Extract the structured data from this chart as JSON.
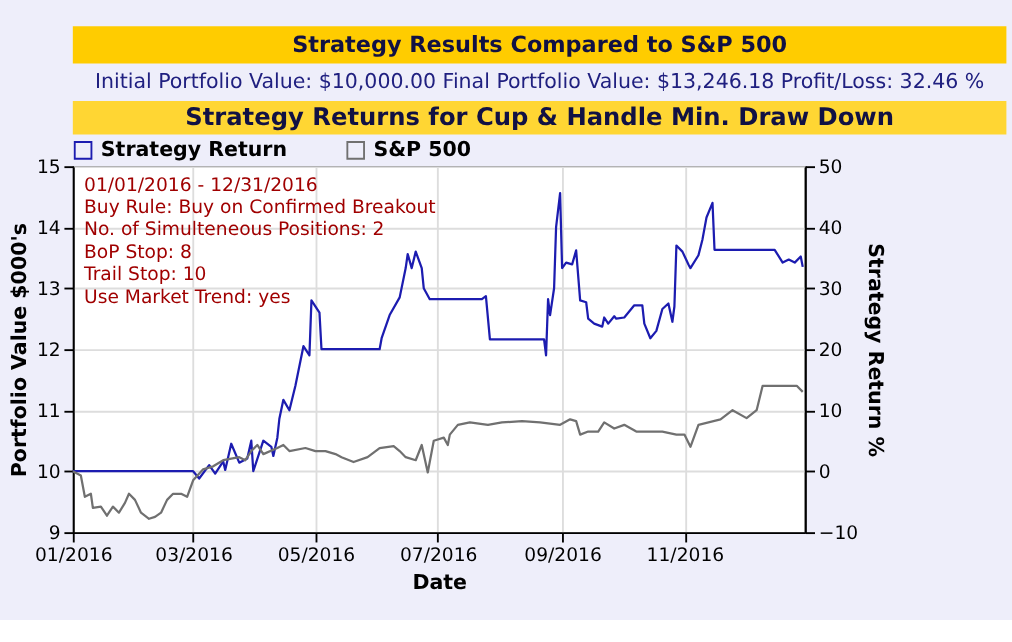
{
  "chart_data": {
    "type": "line",
    "title": "Strategy Results Compared to S&P 500",
    "subtitle": "Initial Portfolio Value: $10,000.00 Final Portfolio Value: $13,246.18 Profit/Loss: 32.46 %",
    "annotations": [
      "Strategy Returns for Cup & Handle Min. Draw Down",
      "01/01/2016 - 12/31/2016",
      "Buy Rule: Buy on Confirmed Breakout",
      "No. of Simulteneous Positions: 2",
      "BoP Stop: 8",
      "Trail Stop: 10",
      "Use Market Trend: yes"
    ],
    "xlabel": "Date",
    "ylabel": "Portfolio Value $000's",
    "y2label": "Strategy Return %",
    "xlim": [
      "2016-01-01",
      "2016-12-31"
    ],
    "xticks": [
      {
        "value": "2016-01-01",
        "label": "01/2016"
      },
      {
        "value": "2016-03-01",
        "label": "03/2016"
      },
      {
        "value": "2016-05-01",
        "label": "05/2016"
      },
      {
        "value": "2016-07-01",
        "label": "07/2016"
      },
      {
        "value": "2016-09-01",
        "label": "09/2016"
      },
      {
        "value": "2016-11-01",
        "label": "11/2016"
      }
    ],
    "ylim": [
      9,
      15
    ],
    "yticks": [
      9,
      10,
      11,
      12,
      13,
      14,
      15
    ],
    "y2lim": [
      -10,
      50
    ],
    "y2ticks": [
      -10,
      0,
      10,
      20,
      30,
      40,
      50
    ],
    "grid": true,
    "legend": "top left",
    "marker": "none",
    "line_style": "solid",
    "series": [
      {
        "name": "Strategy Return",
        "color": "#1c1cb0",
        "x": [
          "2016-01-01",
          "2016-03-01",
          "2016-03-04",
          "2016-03-09",
          "2016-03-12",
          "2016-03-16",
          "2016-03-17",
          "2016-03-20",
          "2016-03-24",
          "2016-03-28",
          "2016-03-30",
          "2016-03-31",
          "2016-04-05",
          "2016-04-09",
          "2016-04-10",
          "2016-04-12",
          "2016-04-13",
          "2016-04-15",
          "2016-04-18",
          "2016-04-21",
          "2016-04-25",
          "2016-04-28",
          "2016-04-29",
          "2016-05-03",
          "2016-05-04",
          "2016-06-02",
          "2016-06-03",
          "2016-06-07",
          "2016-06-12",
          "2016-06-15",
          "2016-06-16",
          "2016-06-18",
          "2016-06-20",
          "2016-06-23",
          "2016-06-24",
          "2016-06-27",
          "2016-07-23",
          "2016-07-25",
          "2016-07-27",
          "2016-08-23",
          "2016-08-24",
          "2016-08-25",
          "2016-08-26",
          "2016-08-28",
          "2016-08-29",
          "2016-08-31",
          "2016-09-01",
          "2016-09-03",
          "2016-09-06",
          "2016-09-08",
          "2016-09-10",
          "2016-09-13",
          "2016-09-14",
          "2016-09-17",
          "2016-09-21",
          "2016-09-22",
          "2016-09-24",
          "2016-09-27",
          "2016-09-28",
          "2016-10-02",
          "2016-10-07",
          "2016-10-11",
          "2016-10-12",
          "2016-10-15",
          "2016-10-18",
          "2016-10-21",
          "2016-10-24",
          "2016-10-26",
          "2016-10-27",
          "2016-10-28",
          "2016-10-31",
          "2016-11-03",
          "2016-11-04",
          "2016-11-08",
          "2016-11-10",
          "2016-11-12",
          "2016-11-15",
          "2016-11-16",
          "2016-12-16",
          "2016-12-20",
          "2016-12-23",
          "2016-12-26",
          "2016-12-29",
          "2016-12-30"
        ],
        "values": [
          10.0,
          10.0,
          9.88,
          10.1,
          9.96,
          10.16,
          10.02,
          10.45,
          10.14,
          10.21,
          10.5,
          10.0,
          10.5,
          10.4,
          10.25,
          10.55,
          10.86,
          11.17,
          11.0,
          11.4,
          12.05,
          11.9,
          12.8,
          12.6,
          12.0,
          12.0,
          12.18,
          12.56,
          12.85,
          13.33,
          13.56,
          13.33,
          13.6,
          13.33,
          13.0,
          12.82,
          12.82,
          12.87,
          12.16,
          12.16,
          11.9,
          12.82,
          12.56,
          13.0,
          14.0,
          14.56,
          13.33,
          13.42,
          13.39,
          13.62,
          12.8,
          12.77,
          12.5,
          12.42,
          12.37,
          12.52,
          12.42,
          12.54,
          12.5,
          12.52,
          12.72,
          12.72,
          12.42,
          12.18,
          12.3,
          12.66,
          12.75,
          12.45,
          12.7,
          13.7,
          13.6,
          13.39,
          13.33,
          13.54,
          13.8,
          14.16,
          14.4,
          13.63,
          13.63,
          13.42,
          13.47,
          13.42,
          13.52,
          13.35
        ]
      },
      {
        "name": "S&P 500",
        "color": "#707070",
        "x": [
          "2016-01-01",
          "2016-01-05",
          "2016-01-07",
          "2016-01-10",
          "2016-01-11",
          "2016-01-15",
          "2016-01-18",
          "2016-01-21",
          "2016-01-24",
          "2016-01-27",
          "2016-01-29",
          "2016-02-01",
          "2016-02-04",
          "2016-02-08",
          "2016-02-11",
          "2016-02-14",
          "2016-02-17",
          "2016-02-20",
          "2016-02-24",
          "2016-02-27",
          "2016-03-01",
          "2016-03-06",
          "2016-03-11",
          "2016-03-16",
          "2016-03-24",
          "2016-03-27",
          "2016-03-30",
          "2016-04-02",
          "2016-04-05",
          "2016-04-12",
          "2016-04-15",
          "2016-04-18",
          "2016-04-26",
          "2016-05-01",
          "2016-05-06",
          "2016-05-11",
          "2016-05-14",
          "2016-05-20",
          "2016-05-27",
          "2016-06-02",
          "2016-06-09",
          "2016-06-12",
          "2016-06-15",
          "2016-06-20",
          "2016-06-23",
          "2016-06-26",
          "2016-06-29",
          "2016-07-04",
          "2016-07-06",
          "2016-07-07",
          "2016-07-11",
          "2016-07-17",
          "2016-07-26",
          "2016-08-02",
          "2016-08-12",
          "2016-08-21",
          "2016-08-31",
          "2016-09-05",
          "2016-09-08",
          "2016-09-10",
          "2016-09-14",
          "2016-09-19",
          "2016-09-22",
          "2016-09-27",
          "2016-10-02",
          "2016-10-08",
          "2016-10-13",
          "2016-10-21",
          "2016-10-28",
          "2016-11-01",
          "2016-11-04",
          "2016-11-08",
          "2016-11-13",
          "2016-11-19",
          "2016-11-25",
          "2016-12-02",
          "2016-12-07",
          "2016-12-10",
          "2016-12-15",
          "2016-12-21",
          "2016-12-27",
          "2016-12-30"
        ],
        "values": [
          10.0,
          9.93,
          9.58,
          9.63,
          9.4,
          9.42,
          9.27,
          9.42,
          9.32,
          9.48,
          9.63,
          9.53,
          9.32,
          9.22,
          9.25,
          9.32,
          9.53,
          9.63,
          9.63,
          9.58,
          9.85,
          10.03,
          10.08,
          10.18,
          10.23,
          10.18,
          10.33,
          10.43,
          10.28,
          10.38,
          10.43,
          10.33,
          10.38,
          10.33,
          10.33,
          10.28,
          10.23,
          10.15,
          10.23,
          10.38,
          10.41,
          10.33,
          10.23,
          10.18,
          10.43,
          9.98,
          10.5,
          10.55,
          10.43,
          10.6,
          10.76,
          10.8,
          10.76,
          10.8,
          10.82,
          10.8,
          10.76,
          10.85,
          10.82,
          10.6,
          10.65,
          10.65,
          10.8,
          10.7,
          10.76,
          10.65,
          10.65,
          10.65,
          10.6,
          10.6,
          10.4,
          10.76,
          10.8,
          10.85,
          11.0,
          10.87,
          11.0,
          11.4,
          11.4,
          11.4,
          11.4,
          11.3
        ]
      }
    ]
  }
}
